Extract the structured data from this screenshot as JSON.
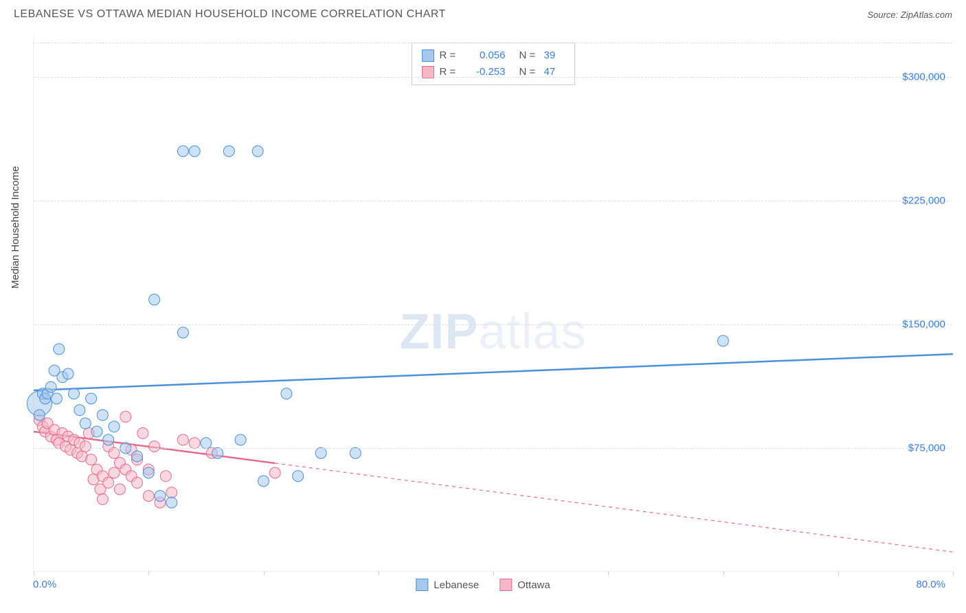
{
  "header": {
    "title": "LEBANESE VS OTTAWA MEDIAN HOUSEHOLD INCOME CORRELATION CHART",
    "source_prefix": "Source: ",
    "source_name": "ZipAtlas.com"
  },
  "chart": {
    "type": "scatter",
    "ylabel": "Median Household Income",
    "xlim": [
      0,
      80
    ],
    "ylim": [
      0,
      325000
    ],
    "x_tick_positions": [
      0,
      10,
      20,
      30,
      40,
      50,
      60,
      70,
      80
    ],
    "x_axis_left_label": "0.0%",
    "x_axis_right_label": "80.0%",
    "y_gridlines": [
      75000,
      150000,
      225000,
      300000
    ],
    "y_tick_labels": [
      "$75,000",
      "$150,000",
      "$225,000",
      "$300,000"
    ],
    "grid_color": "#dddddd",
    "background_color": "#ffffff",
    "series": {
      "lebanese": {
        "label": "Lebanese",
        "fill": "#a6c8ec",
        "stroke": "#4a90d9",
        "opacity": 0.55,
        "marker_radius": 8,
        "trend": {
          "x1": 0,
          "y1": 110000,
          "x2": 80,
          "y2": 132000,
          "solid_until_x": 80
        },
        "points": [
          {
            "x": 0.5,
            "y": 102000,
            "r": 18
          },
          {
            "x": 0.5,
            "y": 95000
          },
          {
            "x": 0.8,
            "y": 108000
          },
          {
            "x": 1.0,
            "y": 105000
          },
          {
            "x": 1.2,
            "y": 108000
          },
          {
            "x": 1.5,
            "y": 112000
          },
          {
            "x": 1.8,
            "y": 122000
          },
          {
            "x": 2.0,
            "y": 105000
          },
          {
            "x": 2.2,
            "y": 135000
          },
          {
            "x": 2.5,
            "y": 118000
          },
          {
            "x": 3.0,
            "y": 120000
          },
          {
            "x": 3.5,
            "y": 108000
          },
          {
            "x": 4.0,
            "y": 98000
          },
          {
            "x": 4.5,
            "y": 90000
          },
          {
            "x": 5.0,
            "y": 105000
          },
          {
            "x": 5.5,
            "y": 85000
          },
          {
            "x": 6.0,
            "y": 95000
          },
          {
            "x": 6.5,
            "y": 80000
          },
          {
            "x": 7.0,
            "y": 88000
          },
          {
            "x": 8.0,
            "y": 75000
          },
          {
            "x": 9.0,
            "y": 70000
          },
          {
            "x": 10.0,
            "y": 60000
          },
          {
            "x": 10.5,
            "y": 165000
          },
          {
            "x": 11.0,
            "y": 46000
          },
          {
            "x": 12.0,
            "y": 42000
          },
          {
            "x": 13.0,
            "y": 145000
          },
          {
            "x": 13.0,
            "y": 255000
          },
          {
            "x": 14.0,
            "y": 255000
          },
          {
            "x": 15.0,
            "y": 78000
          },
          {
            "x": 16.0,
            "y": 72000
          },
          {
            "x": 17.0,
            "y": 255000
          },
          {
            "x": 18.0,
            "y": 80000
          },
          {
            "x": 19.5,
            "y": 255000
          },
          {
            "x": 20.0,
            "y": 55000
          },
          {
            "x": 22.0,
            "y": 108000
          },
          {
            "x": 23.0,
            "y": 58000
          },
          {
            "x": 25.0,
            "y": 72000
          },
          {
            "x": 28.0,
            "y": 72000
          },
          {
            "x": 60.0,
            "y": 140000
          }
        ]
      },
      "ottawa": {
        "label": "Ottawa",
        "fill": "#f5b8c8",
        "stroke": "#e56b8c",
        "opacity": 0.55,
        "marker_radius": 8,
        "trend": {
          "x1": 0,
          "y1": 85000,
          "x2": 80,
          "y2": 12000,
          "solid_until_x": 21
        },
        "points": [
          {
            "x": 0.5,
            "y": 92000
          },
          {
            "x": 0.8,
            "y": 88000
          },
          {
            "x": 1.0,
            "y": 85000
          },
          {
            "x": 1.2,
            "y": 90000
          },
          {
            "x": 1.5,
            "y": 82000
          },
          {
            "x": 1.8,
            "y": 86000
          },
          {
            "x": 2.0,
            "y": 80000
          },
          {
            "x": 2.2,
            "y": 78000
          },
          {
            "x": 2.5,
            "y": 84000
          },
          {
            "x": 2.8,
            "y": 76000
          },
          {
            "x": 3.0,
            "y": 82000
          },
          {
            "x": 3.2,
            "y": 74000
          },
          {
            "x": 3.5,
            "y": 80000
          },
          {
            "x": 3.8,
            "y": 72000
          },
          {
            "x": 4.0,
            "y": 78000
          },
          {
            "x": 4.2,
            "y": 70000
          },
          {
            "x": 4.5,
            "y": 76000
          },
          {
            "x": 4.8,
            "y": 84000
          },
          {
            "x": 5.0,
            "y": 68000
          },
          {
            "x": 5.2,
            "y": 56000
          },
          {
            "x": 5.5,
            "y": 62000
          },
          {
            "x": 5.8,
            "y": 50000
          },
          {
            "x": 6.0,
            "y": 58000
          },
          {
            "x": 6.0,
            "y": 44000
          },
          {
            "x": 6.5,
            "y": 54000
          },
          {
            "x": 6.5,
            "y": 76000
          },
          {
            "x": 7.0,
            "y": 60000
          },
          {
            "x": 7.0,
            "y": 72000
          },
          {
            "x": 7.5,
            "y": 66000
          },
          {
            "x": 7.5,
            "y": 50000
          },
          {
            "x": 8.0,
            "y": 62000
          },
          {
            "x": 8.0,
            "y": 94000
          },
          {
            "x": 8.5,
            "y": 58000
          },
          {
            "x": 8.5,
            "y": 74000
          },
          {
            "x": 9.0,
            "y": 54000
          },
          {
            "x": 9.0,
            "y": 68000
          },
          {
            "x": 9.5,
            "y": 84000
          },
          {
            "x": 10.0,
            "y": 46000
          },
          {
            "x": 10.0,
            "y": 62000
          },
          {
            "x": 10.5,
            "y": 76000
          },
          {
            "x": 11.0,
            "y": 42000
          },
          {
            "x": 11.5,
            "y": 58000
          },
          {
            "x": 12.0,
            "y": 48000
          },
          {
            "x": 13.0,
            "y": 80000
          },
          {
            "x": 14.0,
            "y": 78000
          },
          {
            "x": 15.5,
            "y": 72000
          },
          {
            "x": 21.0,
            "y": 60000
          }
        ]
      }
    },
    "stats_legend": [
      {
        "series": "lebanese",
        "r_label": "R =",
        "r_val": "0.056",
        "n_label": "N =",
        "n_val": "39"
      },
      {
        "series": "ottawa",
        "r_label": "R =",
        "r_val": "-0.253",
        "n_label": "N =",
        "n_val": "47"
      }
    ],
    "bottom_legend": [
      {
        "series": "lebanese",
        "label": "Lebanese"
      },
      {
        "series": "ottawa",
        "label": "Ottawa"
      }
    ],
    "watermark": {
      "bold": "ZIP",
      "rest": "atlas"
    }
  }
}
